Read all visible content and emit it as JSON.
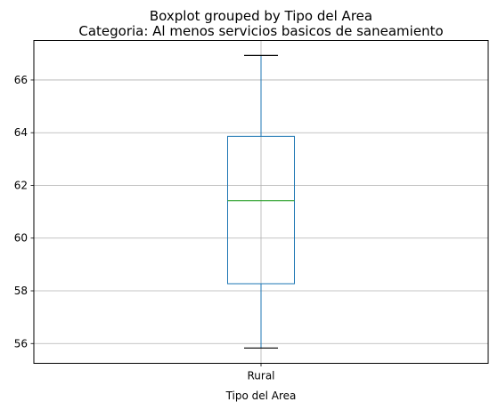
{
  "chart_data": {
    "type": "boxplot",
    "suptitle": "Boxplot grouped by Tipo del Area",
    "title": "Categoria: Al menos servicios basicos de saneamiento",
    "xlabel": "Tipo del Area",
    "ylabel": "",
    "categories": [
      "Rural"
    ],
    "boxes": [
      {
        "category": "Rural",
        "whisker_low": 55.83,
        "q1": 58.27,
        "median": 61.42,
        "q3": 63.86,
        "whisker_high": 66.93
      }
    ],
    "ylim": [
      55.25,
      67.5
    ],
    "yticks": [
      56,
      58,
      60,
      62,
      64,
      66
    ],
    "grid": true,
    "colors": {
      "box": "#1f77b4",
      "median": "#2ca02c",
      "whisker_cap": "#000000",
      "grid": "#b0b0b0",
      "axes": "#000000"
    }
  }
}
